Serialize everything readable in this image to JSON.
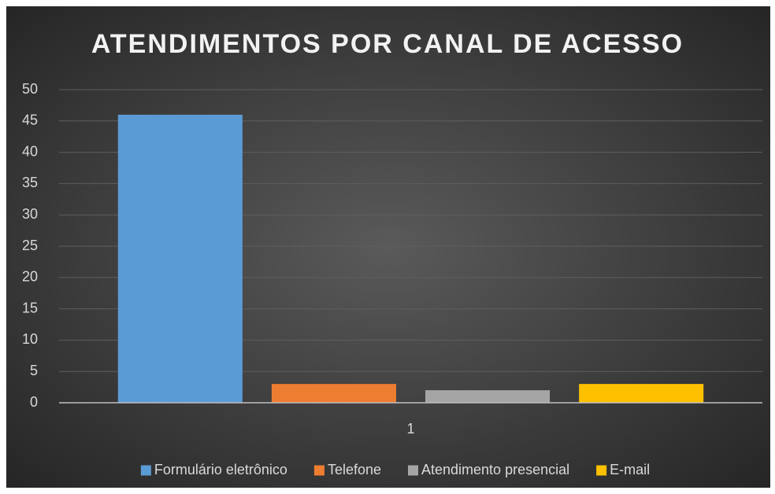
{
  "chart_data": {
    "type": "bar",
    "title": "ATENDIMENTOS POR CANAL DE ACESSO",
    "categories": [
      "1"
    ],
    "series": [
      {
        "name": "Formulário eletrônico",
        "color": "#5b9bd5",
        "values": [
          46
        ]
      },
      {
        "name": "Telefone",
        "color": "#ed7d31",
        "values": [
          3
        ]
      },
      {
        "name": "Atendimento presencial",
        "color": "#a5a5a5",
        "values": [
          2
        ]
      },
      {
        "name": "E-mail",
        "color": "#ffc000",
        "values": [
          3
        ]
      }
    ],
    "ylim": [
      0,
      50
    ],
    "yticks": [
      0,
      5,
      10,
      15,
      20,
      25,
      30,
      35,
      40,
      45,
      50
    ],
    "grid": true,
    "legend": "bottom"
  }
}
